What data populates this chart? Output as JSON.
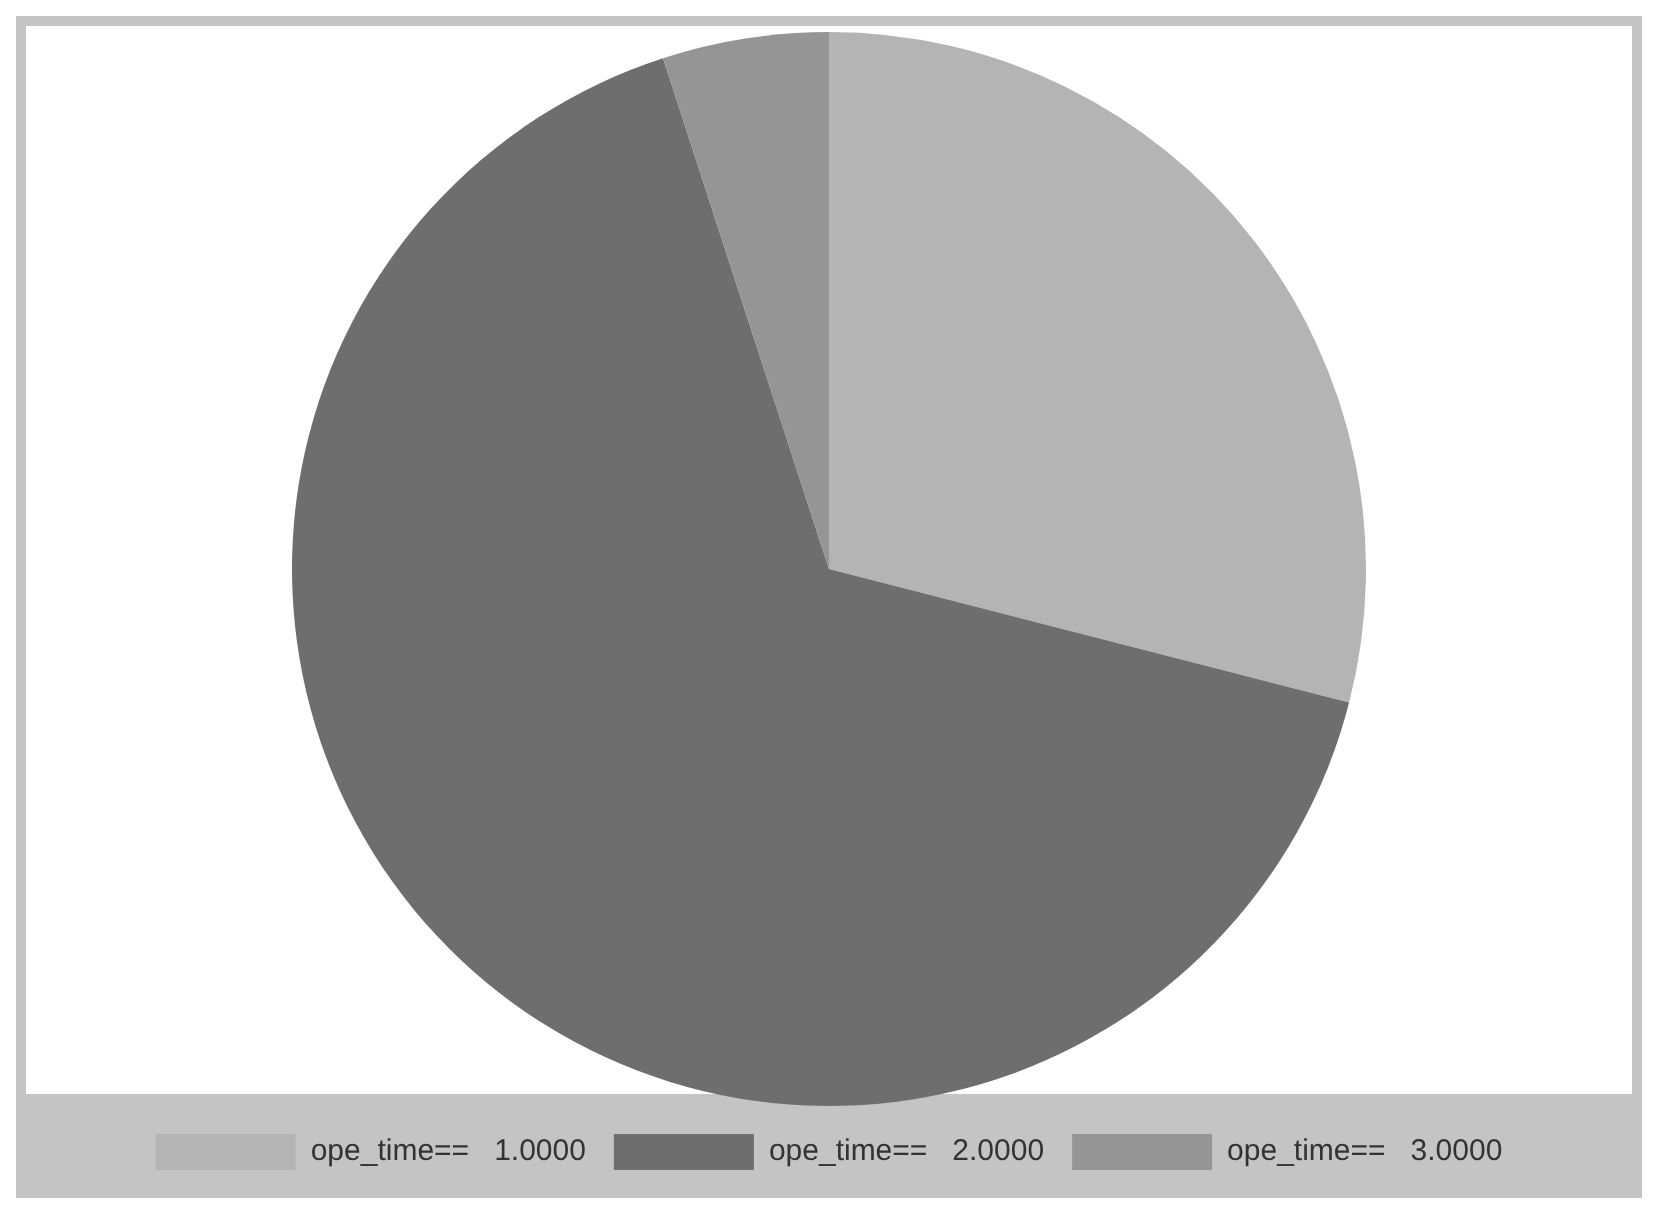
{
  "chart_data": {
    "type": "pie",
    "categories": [
      "ope_time==   1.0000",
      "ope_time==   2.0000",
      "ope_time==   3.0000"
    ],
    "values": [
      29,
      66,
      5
    ],
    "colors": [
      "#b4b4b4",
      "#6e6e6e",
      "#959595"
    ],
    "legend": "bottom"
  }
}
